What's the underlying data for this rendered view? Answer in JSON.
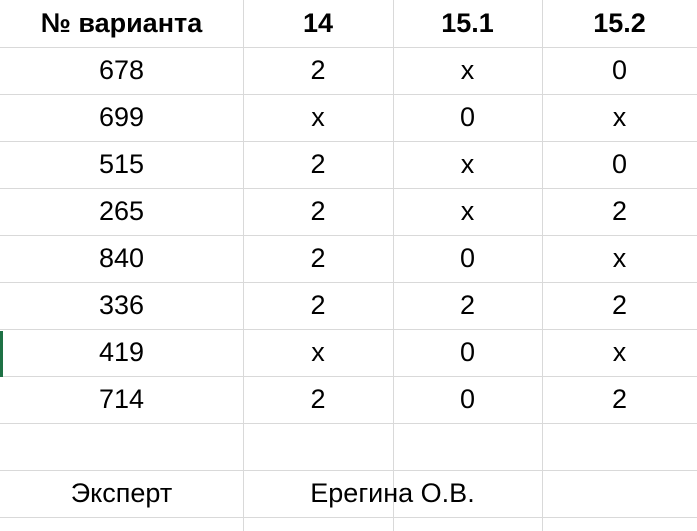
{
  "table": {
    "headers": [
      "№ варианта",
      "14",
      "15.1",
      "15.2"
    ],
    "rows": [
      [
        "678",
        "2",
        "x",
        "0"
      ],
      [
        "699",
        "x",
        "0",
        "x"
      ],
      [
        "515",
        "2",
        "x",
        "0"
      ],
      [
        "265",
        "2",
        "x",
        "2"
      ],
      [
        "840",
        "2",
        "0",
        "x"
      ],
      [
        "336",
        "2",
        "2",
        "2"
      ],
      [
        "419",
        "x",
        "0",
        "x"
      ],
      [
        "714",
        "2",
        "0",
        "2"
      ]
    ]
  },
  "footer": {
    "expert_label": "Эксперт",
    "expert_name": "Ерегина О.В."
  },
  "colors": {
    "gridline": "#d9d9d9",
    "selection_marker": "#1e7145",
    "text": "#000000",
    "background": "#ffffff"
  }
}
